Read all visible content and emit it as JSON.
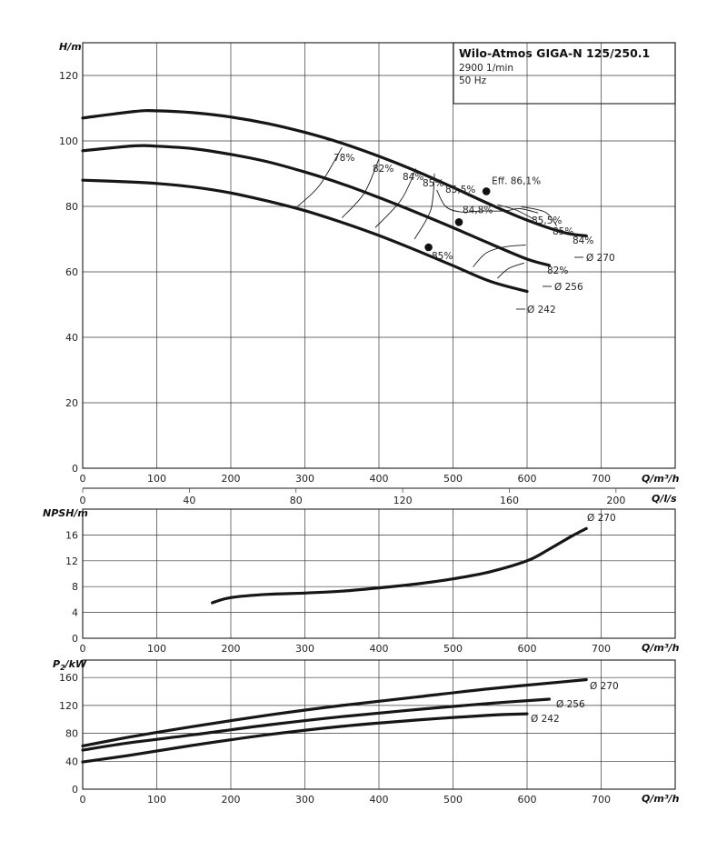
{
  "title_box": {
    "title": "Wilo-Atmos GIGA-N 125/250.1",
    "speed": "2900 1/min",
    "freq": "50 Hz"
  },
  "chart_data": [
    {
      "type": "line",
      "panel": "head",
      "ylabel": "H/m",
      "xlabel": "Q/m³/h",
      "xlim": [
        0,
        800
      ],
      "ylim": [
        0,
        130
      ],
      "x_ticks": [
        0,
        100,
        200,
        300,
        400,
        500,
        600,
        700
      ],
      "y_ticks": [
        0,
        20,
        40,
        60,
        80,
        100,
        120
      ],
      "grid": true,
      "series": [
        {
          "name": "Ø 270",
          "x": [
            0,
            70,
            100,
            150,
            200,
            250,
            300,
            350,
            400,
            450,
            500,
            550,
            600,
            650,
            680
          ],
          "y": [
            107,
            109,
            109.2,
            108.6,
            107.3,
            105.3,
            102.6,
            99.3,
            95.3,
            90.8,
            85.8,
            80.6,
            75.8,
            72,
            71
          ]
        },
        {
          "name": "Ø 256",
          "x": [
            0,
            70,
            100,
            150,
            200,
            250,
            300,
            350,
            400,
            450,
            500,
            550,
            600,
            630
          ],
          "y": [
            97,
            98.5,
            98.4,
            97.6,
            95.9,
            93.6,
            90.5,
            86.9,
            82.7,
            78.2,
            73.5,
            68.6,
            63.9,
            62
          ]
        },
        {
          "name": "Ø 242",
          "x": [
            0,
            60,
            100,
            150,
            200,
            250,
            300,
            350,
            400,
            450,
            500,
            550,
            600
          ],
          "y": [
            88,
            87.5,
            87,
            85.9,
            84.1,
            81.6,
            78.7,
            75.1,
            71.1,
            66.6,
            61.9,
            57.1,
            54
          ]
        }
      ],
      "duty_points": [
        {
          "label": "Eff. 86,1%",
          "x": 545,
          "y": 84.6
        },
        {
          "label": "84,8%",
          "x": 508,
          "y": 75.2
        },
        {
          "label": "85%",
          "x": 467,
          "y": 67.5
        }
      ],
      "efficiency_labels": [
        "78%",
        "82%",
        "84%",
        "85%",
        "85,5%",
        "85,5%",
        "85%",
        "84%",
        "82%",
        "85%"
      ],
      "diameter_labels": [
        "Ø 270",
        "Ø 256",
        "Ø 242"
      ]
    },
    {
      "type": "line",
      "panel": "flow_ls_axis",
      "xlabel": "Q/l/s",
      "xlim": [
        0,
        222.2
      ],
      "x_ticks": [
        0,
        40,
        80,
        120,
        160,
        200
      ]
    },
    {
      "type": "line",
      "panel": "npsh",
      "ylabel": "NPSH/m",
      "xlabel": "Q/m³/h",
      "xlim": [
        0,
        800
      ],
      "ylim": [
        0,
        20
      ],
      "x_ticks": [
        0,
        100,
        200,
        300,
        400,
        500,
        600,
        700
      ],
      "y_ticks": [
        0,
        4,
        8,
        12,
        16
      ],
      "grid": true,
      "series": [
        {
          "name": "Ø 270",
          "x": [
            175,
            200,
            250,
            300,
            350,
            400,
            450,
            500,
            550,
            600,
            630,
            660,
            680
          ],
          "y": [
            5.5,
            6.3,
            6.8,
            7.0,
            7.3,
            7.8,
            8.4,
            9.2,
            10.3,
            12,
            13.8,
            15.8,
            17
          ]
        }
      ]
    },
    {
      "type": "line",
      "panel": "power",
      "ylabel": "P2/kW",
      "xlabel": "Q/m³/h",
      "xlim": [
        0,
        800
      ],
      "ylim": [
        0,
        185
      ],
      "x_ticks": [
        0,
        100,
        200,
        300,
        400,
        500,
        600,
        700
      ],
      "y_ticks": [
        0,
        40,
        80,
        120,
        160
      ],
      "grid": true,
      "series": [
        {
          "name": "Ø 270",
          "x": [
            0,
            70,
            150,
            250,
            350,
            450,
            550,
            650,
            680
          ],
          "y": [
            62,
            76,
            90,
            106,
            120,
            132,
            144,
            154,
            157
          ]
        },
        {
          "name": "Ø 256",
          "x": [
            0,
            60,
            150,
            250,
            350,
            450,
            550,
            630
          ],
          "y": [
            56,
            66,
            78,
            92,
            104,
            114,
            123,
            129
          ]
        },
        {
          "name": "Ø 242",
          "x": [
            0,
            60,
            150,
            250,
            350,
            450,
            550,
            600
          ],
          "y": [
            39,
            48,
            63,
            78,
            90,
            99,
            106,
            108
          ]
        }
      ]
    }
  ],
  "labels": {
    "h_axis": "H/m",
    "q_axis": "Q/m³/h",
    "qls_axis": "Q/l/s",
    "npsh_axis": "NPSH/m",
    "p2_axis_main": "P",
    "p2_axis_sub": "2",
    "p2_axis_unit": "/kW"
  }
}
